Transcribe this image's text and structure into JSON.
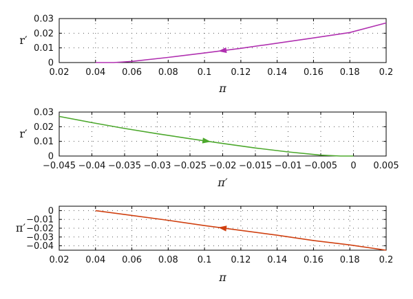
{
  "colors": {
    "panel1": "#b030b0",
    "panel2": "#4ca82c",
    "panel3": "#d04010"
  },
  "chart_data": [
    {
      "type": "line",
      "xlabel": "π",
      "ylabel": "r′",
      "xlim": [
        0.02,
        0.2
      ],
      "ylim": [
        0,
        0.03
      ],
      "xticks": [
        "0.02",
        "0.04",
        "0.06",
        "0.08",
        "0.1",
        "0.12",
        "0.14",
        "0.16",
        "0.18",
        "0.2"
      ],
      "yticks": [
        "0",
        "0.01",
        "0.02",
        "0.03"
      ],
      "grid": true,
      "arrow": "toward decreasing x",
      "series": [
        {
          "color": "#b030b0",
          "x": [
            0.04,
            0.05,
            0.06,
            0.08,
            0.1,
            0.12,
            0.14,
            0.16,
            0.18,
            0.2
          ],
          "y": [
            0.0,
            0.0,
            0.0008,
            0.0035,
            0.0065,
            0.0097,
            0.0132,
            0.0168,
            0.0205,
            0.027
          ]
        }
      ]
    },
    {
      "type": "line",
      "xlabel": "π′",
      "ylabel": "r′",
      "xlim": [
        -0.045,
        0.005
      ],
      "ylim": [
        0,
        0.03
      ],
      "xticks": [
        "−0.045",
        "−0.04",
        "−0.035",
        "−0.03",
        "−0.025",
        "−0.02",
        "−0.015",
        "−0.01",
        "−0.005",
        "0",
        "0.005"
      ],
      "yticks": [
        "0",
        "0.01",
        "0.02",
        "0.03"
      ],
      "grid": true,
      "arrow": "toward increasing x",
      "series": [
        {
          "color": "#4ca82c",
          "x": [
            -0.045,
            -0.04,
            -0.035,
            -0.03,
            -0.025,
            -0.02,
            -0.015,
            -0.01,
            -0.005,
            -0.002,
            0.0
          ],
          "y": [
            0.027,
            0.0228,
            0.0188,
            0.0152,
            0.0118,
            0.0086,
            0.0055,
            0.0028,
            0.0006,
            0.0,
            0.0
          ]
        }
      ]
    },
    {
      "type": "line",
      "xlabel": "π",
      "ylabel": "π′",
      "xlim": [
        0.02,
        0.2
      ],
      "ylim": [
        -0.045,
        0.005
      ],
      "xticks": [
        "0.02",
        "0.04",
        "0.06",
        "0.08",
        "0.1",
        "0.12",
        "0.14",
        "0.16",
        "0.18",
        "0.2"
      ],
      "yticks": [
        "0",
        "−0.01",
        "−0.02",
        "−0.03",
        "−0.04"
      ],
      "grid": true,
      "arrow": "toward decreasing x",
      "series": [
        {
          "color": "#d04010",
          "x": [
            0.04,
            0.06,
            0.08,
            0.1,
            0.12,
            0.14,
            0.16,
            0.18,
            0.2
          ],
          "y": [
            0.0,
            -0.0055,
            -0.011,
            -0.017,
            -0.0225,
            -0.028,
            -0.034,
            -0.039,
            -0.045
          ]
        }
      ]
    }
  ]
}
